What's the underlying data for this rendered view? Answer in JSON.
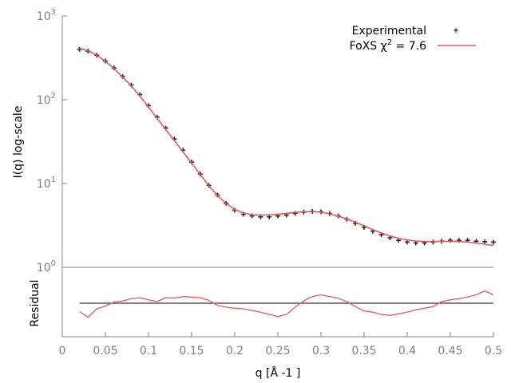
{
  "colors": {
    "experimental": "#2b2b2b",
    "fit": "#e05a5a",
    "axis": "#808080",
    "zero_line": "#000000"
  },
  "chart_data": [
    {
      "type": "line",
      "title": "",
      "xlabel": "q [Å -1 ]",
      "ylabel": "I(q) log-scale",
      "yscale": "log",
      "xlim": [
        0,
        0.5
      ],
      "ylim": [
        1,
        1000
      ],
      "x_ticks": [
        "0",
        "0.05",
        "0.1",
        "0.15",
        "0.2",
        "0.25",
        "0.3",
        "0.35",
        "0.4",
        "0.45",
        "0.5"
      ],
      "y_ticks": [
        {
          "base": "10",
          "exp": "0",
          "value": 1
        },
        {
          "base": "10",
          "exp": "1",
          "value": 10
        },
        {
          "base": "10",
          "exp": "2",
          "value": 100
        },
        {
          "base": "10",
          "exp": "3",
          "value": 1000
        }
      ],
      "grid": false,
      "legend": "top-right",
      "series": [
        {
          "name": "Experimental",
          "legend_label": "Experimental",
          "style": "points",
          "x": [
            0.02,
            0.03,
            0.04,
            0.05,
            0.06,
            0.07,
            0.08,
            0.09,
            0.1,
            0.11,
            0.12,
            0.13,
            0.14,
            0.15,
            0.16,
            0.17,
            0.18,
            0.19,
            0.2,
            0.21,
            0.22,
            0.23,
            0.24,
            0.25,
            0.26,
            0.27,
            0.28,
            0.29,
            0.3,
            0.31,
            0.32,
            0.33,
            0.34,
            0.35,
            0.36,
            0.37,
            0.38,
            0.39,
            0.4,
            0.41,
            0.42,
            0.43,
            0.44,
            0.45,
            0.46,
            0.47,
            0.48,
            0.49,
            0.5
          ],
          "y": [
            400,
            380,
            340,
            290,
            240,
            190,
            150,
            115,
            85,
            62,
            46,
            34,
            25,
            18,
            13,
            9.5,
            7.3,
            5.8,
            4.8,
            4.3,
            4.1,
            4.0,
            4.0,
            4.1,
            4.2,
            4.4,
            4.55,
            4.65,
            4.6,
            4.4,
            4.1,
            3.75,
            3.35,
            3.0,
            2.7,
            2.45,
            2.25,
            2.1,
            2.0,
            1.95,
            1.95,
            2.0,
            2.05,
            2.1,
            2.1,
            2.1,
            2.05,
            2.02,
            2.0
          ]
        },
        {
          "name": "FoXS",
          "legend_prefix": "FoXS χ",
          "legend_sup": "2",
          "legend_suffix": " = 7.6",
          "style": "line",
          "x": [
            0.02,
            0.03,
            0.04,
            0.05,
            0.06,
            0.07,
            0.08,
            0.09,
            0.1,
            0.11,
            0.12,
            0.13,
            0.14,
            0.15,
            0.16,
            0.17,
            0.18,
            0.19,
            0.2,
            0.21,
            0.22,
            0.23,
            0.24,
            0.25,
            0.26,
            0.27,
            0.28,
            0.29,
            0.3,
            0.31,
            0.32,
            0.33,
            0.34,
            0.35,
            0.36,
            0.37,
            0.38,
            0.39,
            0.4,
            0.41,
            0.42,
            0.43,
            0.44,
            0.45,
            0.46,
            0.47,
            0.48,
            0.49,
            0.5
          ],
          "y": [
            410,
            385,
            340,
            288,
            236,
            186,
            146,
            111,
            82,
            60,
            44,
            32.5,
            24,
            17.5,
            12.8,
            9.4,
            7.2,
            5.8,
            4.9,
            4.45,
            4.25,
            4.2,
            4.22,
            4.3,
            4.4,
            4.52,
            4.6,
            4.62,
            4.55,
            4.35,
            4.08,
            3.78,
            3.45,
            3.12,
            2.82,
            2.57,
            2.37,
            2.22,
            2.12,
            2.06,
            2.03,
            2.03,
            2.04,
            2.05,
            2.04,
            2.0,
            1.95,
            1.89,
            1.82
          ]
        }
      ]
    },
    {
      "type": "line",
      "title": "",
      "xlabel": "",
      "ylabel": "Residual",
      "xlim": [
        0,
        0.5
      ],
      "ylim": [
        -6,
        6
      ],
      "grid": false,
      "series": [
        {
          "name": "",
          "style": "line",
          "x": [
            0.02,
            0.03,
            0.04,
            0.05,
            0.06,
            0.07,
            0.08,
            0.09,
            0.1,
            0.11,
            0.12,
            0.13,
            0.14,
            0.15,
            0.16,
            0.17,
            0.18,
            0.19,
            0.2,
            0.21,
            0.22,
            0.23,
            0.24,
            0.25,
            0.26,
            0.27,
            0.28,
            0.29,
            0.3,
            0.31,
            0.32,
            0.33,
            0.34,
            0.35,
            0.36,
            0.37,
            0.38,
            0.39,
            0.4,
            0.41,
            0.42,
            0.43,
            0.44,
            0.45,
            0.46,
            0.47,
            0.48,
            0.49,
            0.5
          ],
          "y": [
            -1.5,
            -2.5,
            -1.0,
            -0.5,
            0.2,
            0.4,
            0.8,
            1.0,
            0.6,
            0.3,
            1.0,
            0.9,
            1.2,
            1.1,
            1.0,
            0.5,
            -0.4,
            -0.7,
            -0.9,
            -1.0,
            -1.3,
            -1.6,
            -2.0,
            -2.4,
            -2.0,
            -0.7,
            0.4,
            1.2,
            1.5,
            1.2,
            0.9,
            0.3,
            -0.6,
            -1.4,
            -1.6,
            -2.0,
            -2.2,
            -1.9,
            -1.6,
            -1.2,
            -0.9,
            -0.6,
            0.3,
            0.6,
            0.8,
            1.1,
            1.5,
            2.2,
            1.5
          ]
        }
      ],
      "zero_line": 0
    }
  ]
}
